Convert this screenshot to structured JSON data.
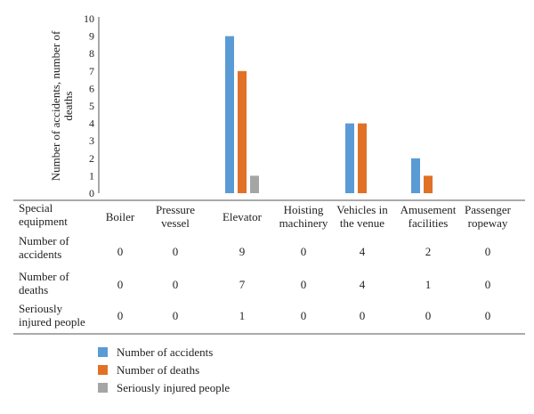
{
  "chart_data": {
    "type": "bar",
    "ylabel_lines": [
      "Number of accidents, number of",
      "deaths"
    ],
    "ylim": [
      0,
      10
    ],
    "yticks": [
      0,
      1,
      2,
      3,
      4,
      5,
      6,
      7,
      8,
      9,
      10
    ],
    "grid": false,
    "legend_position": "bottom-left",
    "table_header_lines": [
      "Special",
      "equipment"
    ],
    "categories": [
      [
        "Boiler"
      ],
      [
        "Pressure",
        "vessel"
      ],
      [
        "Elevator"
      ],
      [
        "Hoisting",
        "machinery"
      ],
      [
        "Vehicles in",
        "the venue"
      ],
      [
        "Amusement",
        "facilities"
      ],
      [
        "Passenger",
        "ropeway"
      ]
    ],
    "series": [
      {
        "name": "Number of accidents",
        "label_lines": [
          "Number of",
          "accidents"
        ],
        "color": "#5b9bd5",
        "values": [
          0,
          0,
          9,
          0,
          4,
          2,
          0
        ]
      },
      {
        "name": "Number of deaths",
        "label_lines": [
          "Number of",
          "deaths"
        ],
        "color": "#e07127",
        "values": [
          0,
          0,
          7,
          0,
          4,
          1,
          0
        ]
      },
      {
        "name": "Seriously injured people",
        "label_lines": [
          "Seriously",
          "injured people"
        ],
        "color": "#a5a5a5",
        "values": [
          0,
          0,
          1,
          0,
          0,
          0,
          0
        ]
      }
    ]
  }
}
